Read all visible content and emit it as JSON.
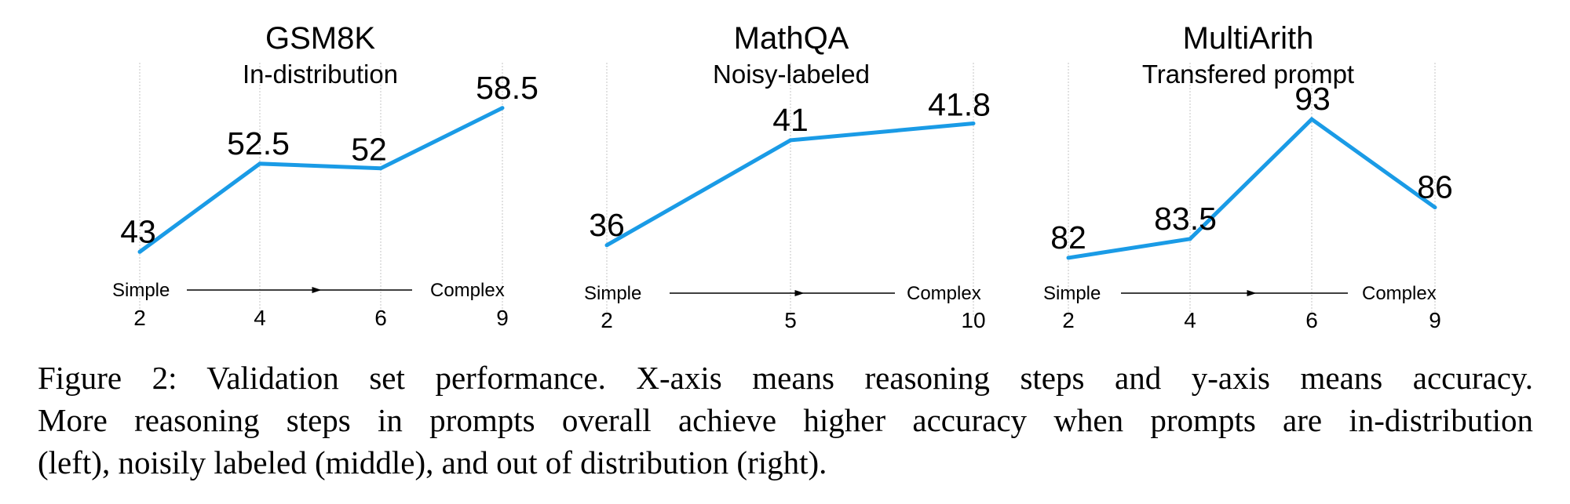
{
  "figure": {
    "caption_lines": [
      "Figure 2:  Validation set performance.  X-axis means reasoning steps and y-axis means accuracy.",
      "More reasoning steps in prompts overall achieve higher accuracy when prompts are in-distribution",
      "(left), noisily labeled (middle), and out of distribution (right)."
    ]
  },
  "chart_data": [
    {
      "type": "line",
      "title": "GSM8K",
      "subtitle": "In-distribution",
      "x": [
        2,
        4,
        6,
        9
      ],
      "x_tick_labels": [
        "2",
        "4",
        "6",
        "9"
      ],
      "series": [
        {
          "values": [
            43,
            52.5,
            52,
            58.5
          ]
        }
      ],
      "data_labels": [
        "43",
        "52.5",
        "52",
        "58.5"
      ],
      "axis_words": [
        "Simple",
        "Complex"
      ],
      "ylim": [
        41,
        60
      ],
      "grid": "vertical-dotted",
      "colors": {
        "line": "#1a9be6"
      }
    },
    {
      "type": "line",
      "title": "MathQA",
      "subtitle": "Noisy-labeled",
      "x": [
        2,
        5,
        10
      ],
      "x_tick_labels": [
        "2",
        "5",
        "10"
      ],
      "series": [
        {
          "values": [
            36,
            41,
            41.8
          ]
        }
      ],
      "data_labels": [
        "36",
        "41",
        "41.8"
      ],
      "axis_words": [
        "Simple",
        "Complex"
      ],
      "ylim": [
        34.8,
        43.2
      ],
      "grid": "vertical-dotted",
      "colors": {
        "line": "#1a9be6"
      }
    },
    {
      "type": "line",
      "title": "MultiArith",
      "subtitle": "Transfered prompt",
      "x": [
        2,
        4,
        6,
        9
      ],
      "x_tick_labels": [
        "2",
        "4",
        "6",
        "9"
      ],
      "series": [
        {
          "values": [
            82,
            83.5,
            93,
            86
          ]
        }
      ],
      "data_labels": [
        "82",
        "83.5",
        "93",
        "86"
      ],
      "axis_words": [
        "Simple",
        "Complex"
      ],
      "ylim": [
        81,
        95
      ],
      "grid": "vertical-dotted",
      "colors": {
        "line": "#1a9be6"
      }
    }
  ]
}
